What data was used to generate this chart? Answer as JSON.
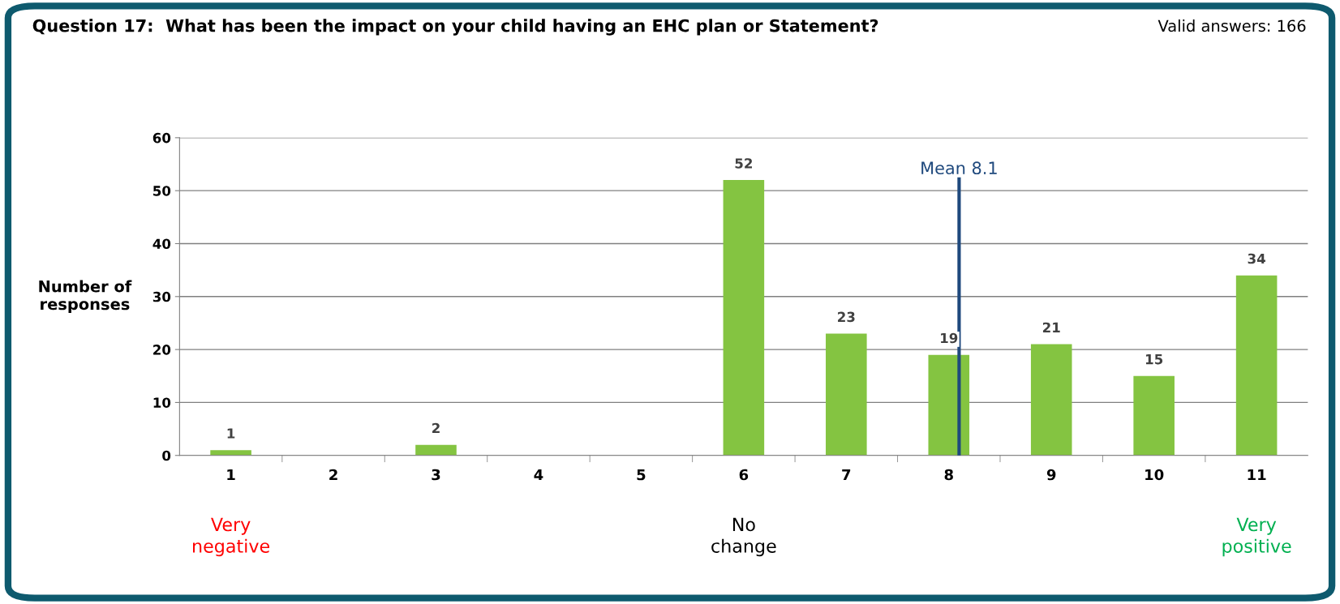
{
  "chart_data": {
    "type": "bar",
    "title": "Question 17:  What has been the impact on your child having an EHC plan or Statement?",
    "ylabel": "Number of\nresponses",
    "x": [
      1,
      2,
      3,
      4,
      5,
      6,
      7,
      8,
      9,
      10,
      11
    ],
    "values": [
      1,
      0,
      2,
      0,
      0,
      52,
      23,
      19,
      21,
      15,
      34
    ],
    "value_labels": [
      "1",
      null,
      "2",
      null,
      null,
      "52",
      "23",
      "19",
      "21",
      "15",
      "34"
    ],
    "color": "#84c441",
    "xlim": [
      0.5,
      11.5
    ],
    "xticks": [
      1,
      2,
      3,
      4,
      5,
      6,
      7,
      8,
      9,
      10,
      11
    ],
    "ylim": [
      0,
      60
    ],
    "yticks": [
      0,
      10,
      20,
      30,
      40,
      50,
      60
    ],
    "grid": "y",
    "ref_lines": [
      {
        "axis": "x",
        "value": 8.1,
        "label": "Mean 8.1",
        "color": "#1f497d"
      }
    ],
    "annotations": [
      "Valid answers: 166",
      "Very\nnegative",
      "No\nchange",
      "Very\npositive"
    ]
  }
}
